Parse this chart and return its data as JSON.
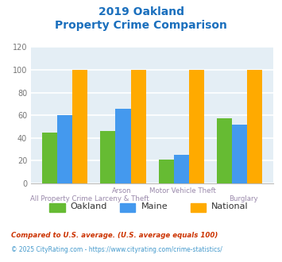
{
  "title_line1": "2019 Oakland",
  "title_line2": "Property Crime Comparison",
  "title_color": "#1a6fbd",
  "tick_labels_top": [
    "",
    "Arson",
    "Motor Vehicle Theft",
    ""
  ],
  "tick_labels_bot": [
    "All Property Crime",
    "Larceny & Theft",
    "",
    "Burglary"
  ],
  "oakland_values": [
    45,
    46,
    21,
    57
  ],
  "maine_values": [
    60,
    66,
    25,
    52
  ],
  "national_values": [
    100,
    100,
    100,
    100
  ],
  "oakland_color": "#66bb33",
  "maine_color": "#4499ee",
  "national_color": "#ffaa00",
  "ylim": [
    0,
    120
  ],
  "yticks": [
    0,
    20,
    40,
    60,
    80,
    100,
    120
  ],
  "plot_bg": "#e4eef5",
  "grid_color": "#ffffff",
  "legend_labels": [
    "Oakland",
    "Maine",
    "National"
  ],
  "tick_color": "#9988aa",
  "ytick_color": "#777777",
  "footnote1": "Compared to U.S. average. (U.S. average equals 100)",
  "footnote2": "© 2025 CityRating.com - https://www.cityrating.com/crime-statistics/",
  "footnote1_color": "#cc3300",
  "footnote2_color": "#4499cc"
}
